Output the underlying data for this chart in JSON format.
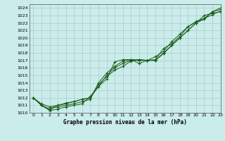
{
  "title": "Graphe pression niveau de la mer (hPa)",
  "bg_color": "#caecea",
  "grid_color": "#aacccc",
  "line_color": "#1a5c1a",
  "xlim": [
    -0.5,
    23
  ],
  "ylim": [
    1010,
    1024.5
  ],
  "xticks": [
    0,
    1,
    2,
    3,
    4,
    5,
    6,
    7,
    8,
    9,
    10,
    11,
    12,
    13,
    14,
    15,
    16,
    17,
    18,
    19,
    20,
    21,
    22,
    23
  ],
  "yticks": [
    1010,
    1011,
    1012,
    1013,
    1014,
    1015,
    1016,
    1017,
    1018,
    1019,
    1020,
    1021,
    1022,
    1023,
    1024
  ],
  "series": [
    [
      1012,
      1011,
      1010.3,
      1010.5,
      1010.8,
      1011,
      1011.2,
      1012.2,
      1013.5,
      1014.5,
      1016.8,
      1017.1,
      1017.1,
      1017.1,
      1017.0,
      1017.0,
      1017.9,
      1019.0,
      1020.0,
      1021.0,
      1022.0,
      1023.0,
      1023.3,
      1023.5
    ],
    [
      1012,
      1011,
      1010.5,
      1010.8,
      1011,
      1011.2,
      1011.5,
      1011.8,
      1014.0,
      1015.3,
      1016.2,
      1016.9,
      1017.1,
      1016.6,
      1017.0,
      1017.1,
      1018.6,
      1019.2,
      1020.2,
      1021.5,
      1022.2,
      1022.6,
      1023.5,
      1023.8
    ],
    [
      1012,
      1011,
      1010.5,
      1011.0,
      1011.2,
      1011.5,
      1011.8,
      1012.0,
      1013.8,
      1014.8,
      1015.7,
      1016.2,
      1016.9,
      1017.1,
      1017.0,
      1017.5,
      1018.2,
      1019.5,
      1020.5,
      1021.5,
      1022.1,
      1022.6,
      1023.1,
      1023.6
    ],
    [
      1012,
      1011.2,
      1010.8,
      1011.0,
      1011.3,
      1011.5,
      1011.8,
      1012.0,
      1013.5,
      1015.0,
      1016.0,
      1016.6,
      1017.0,
      1017.0,
      1017.0,
      1017.0,
      1018.0,
      1019.0,
      1020.0,
      1021.0,
      1022.0,
      1022.5,
      1023.5,
      1024.0
    ]
  ]
}
